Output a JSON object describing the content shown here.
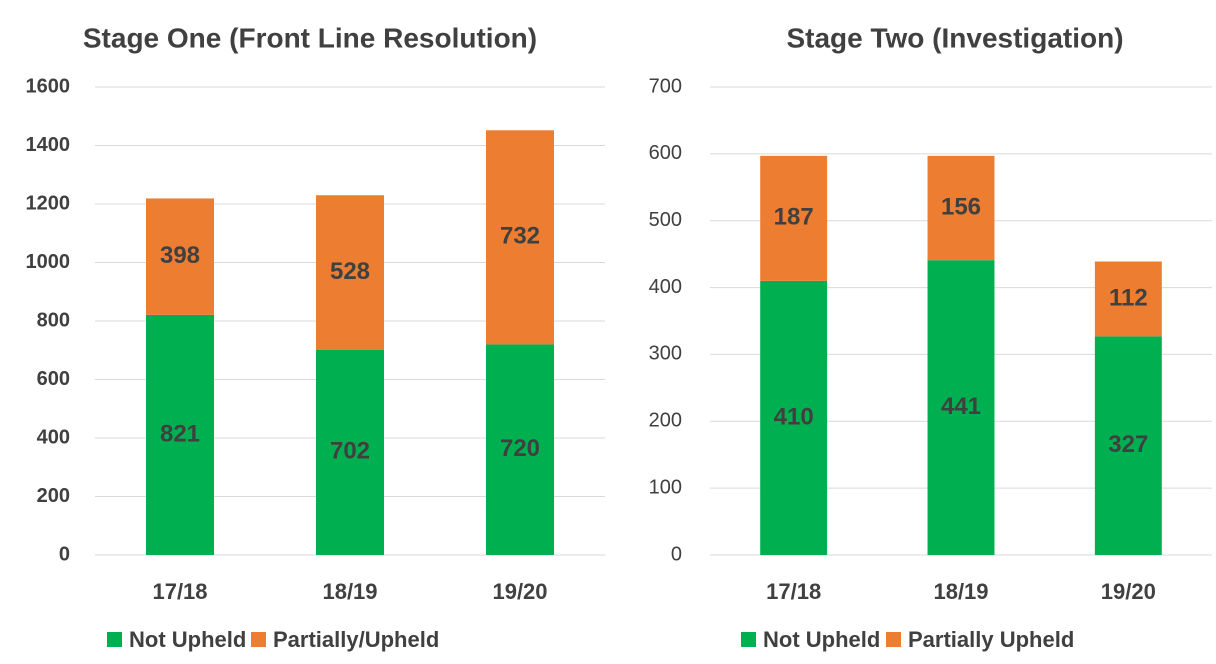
{
  "chart_data": [
    {
      "type": "bar",
      "stacked": true,
      "title": "Stage One (Front Line Resolution)",
      "categories": [
        "17/18",
        "18/19",
        "19/20"
      ],
      "series": [
        {
          "name": "Not Upheld",
          "color": "#00b050",
          "values": [
            821,
            702,
            720
          ]
        },
        {
          "name": "Partially/Upheld",
          "color": "#ed7d31",
          "values": [
            398,
            528,
            732
          ]
        }
      ],
      "ylim": [
        0,
        1600
      ],
      "yticks": [
        0,
        200,
        400,
        600,
        800,
        1000,
        1200,
        1400,
        1600
      ],
      "grid": true,
      "legend": "bottom",
      "bold_ticks": true
    },
    {
      "type": "bar",
      "stacked": true,
      "title": "Stage Two (Investigation)",
      "categories": [
        "17/18",
        "18/19",
        "19/20"
      ],
      "series": [
        {
          "name": "Not Upheld",
          "color": "#00b050",
          "values": [
            410,
            441,
            327
          ]
        },
        {
          "name": "Partially Upheld",
          "color": "#ed7d31",
          "values": [
            187,
            156,
            112
          ]
        }
      ],
      "ylim": [
        0,
        700
      ],
      "yticks": [
        0,
        100,
        200,
        300,
        400,
        500,
        600,
        700
      ],
      "grid": true,
      "legend": "bottom",
      "bold_ticks": false
    }
  ]
}
